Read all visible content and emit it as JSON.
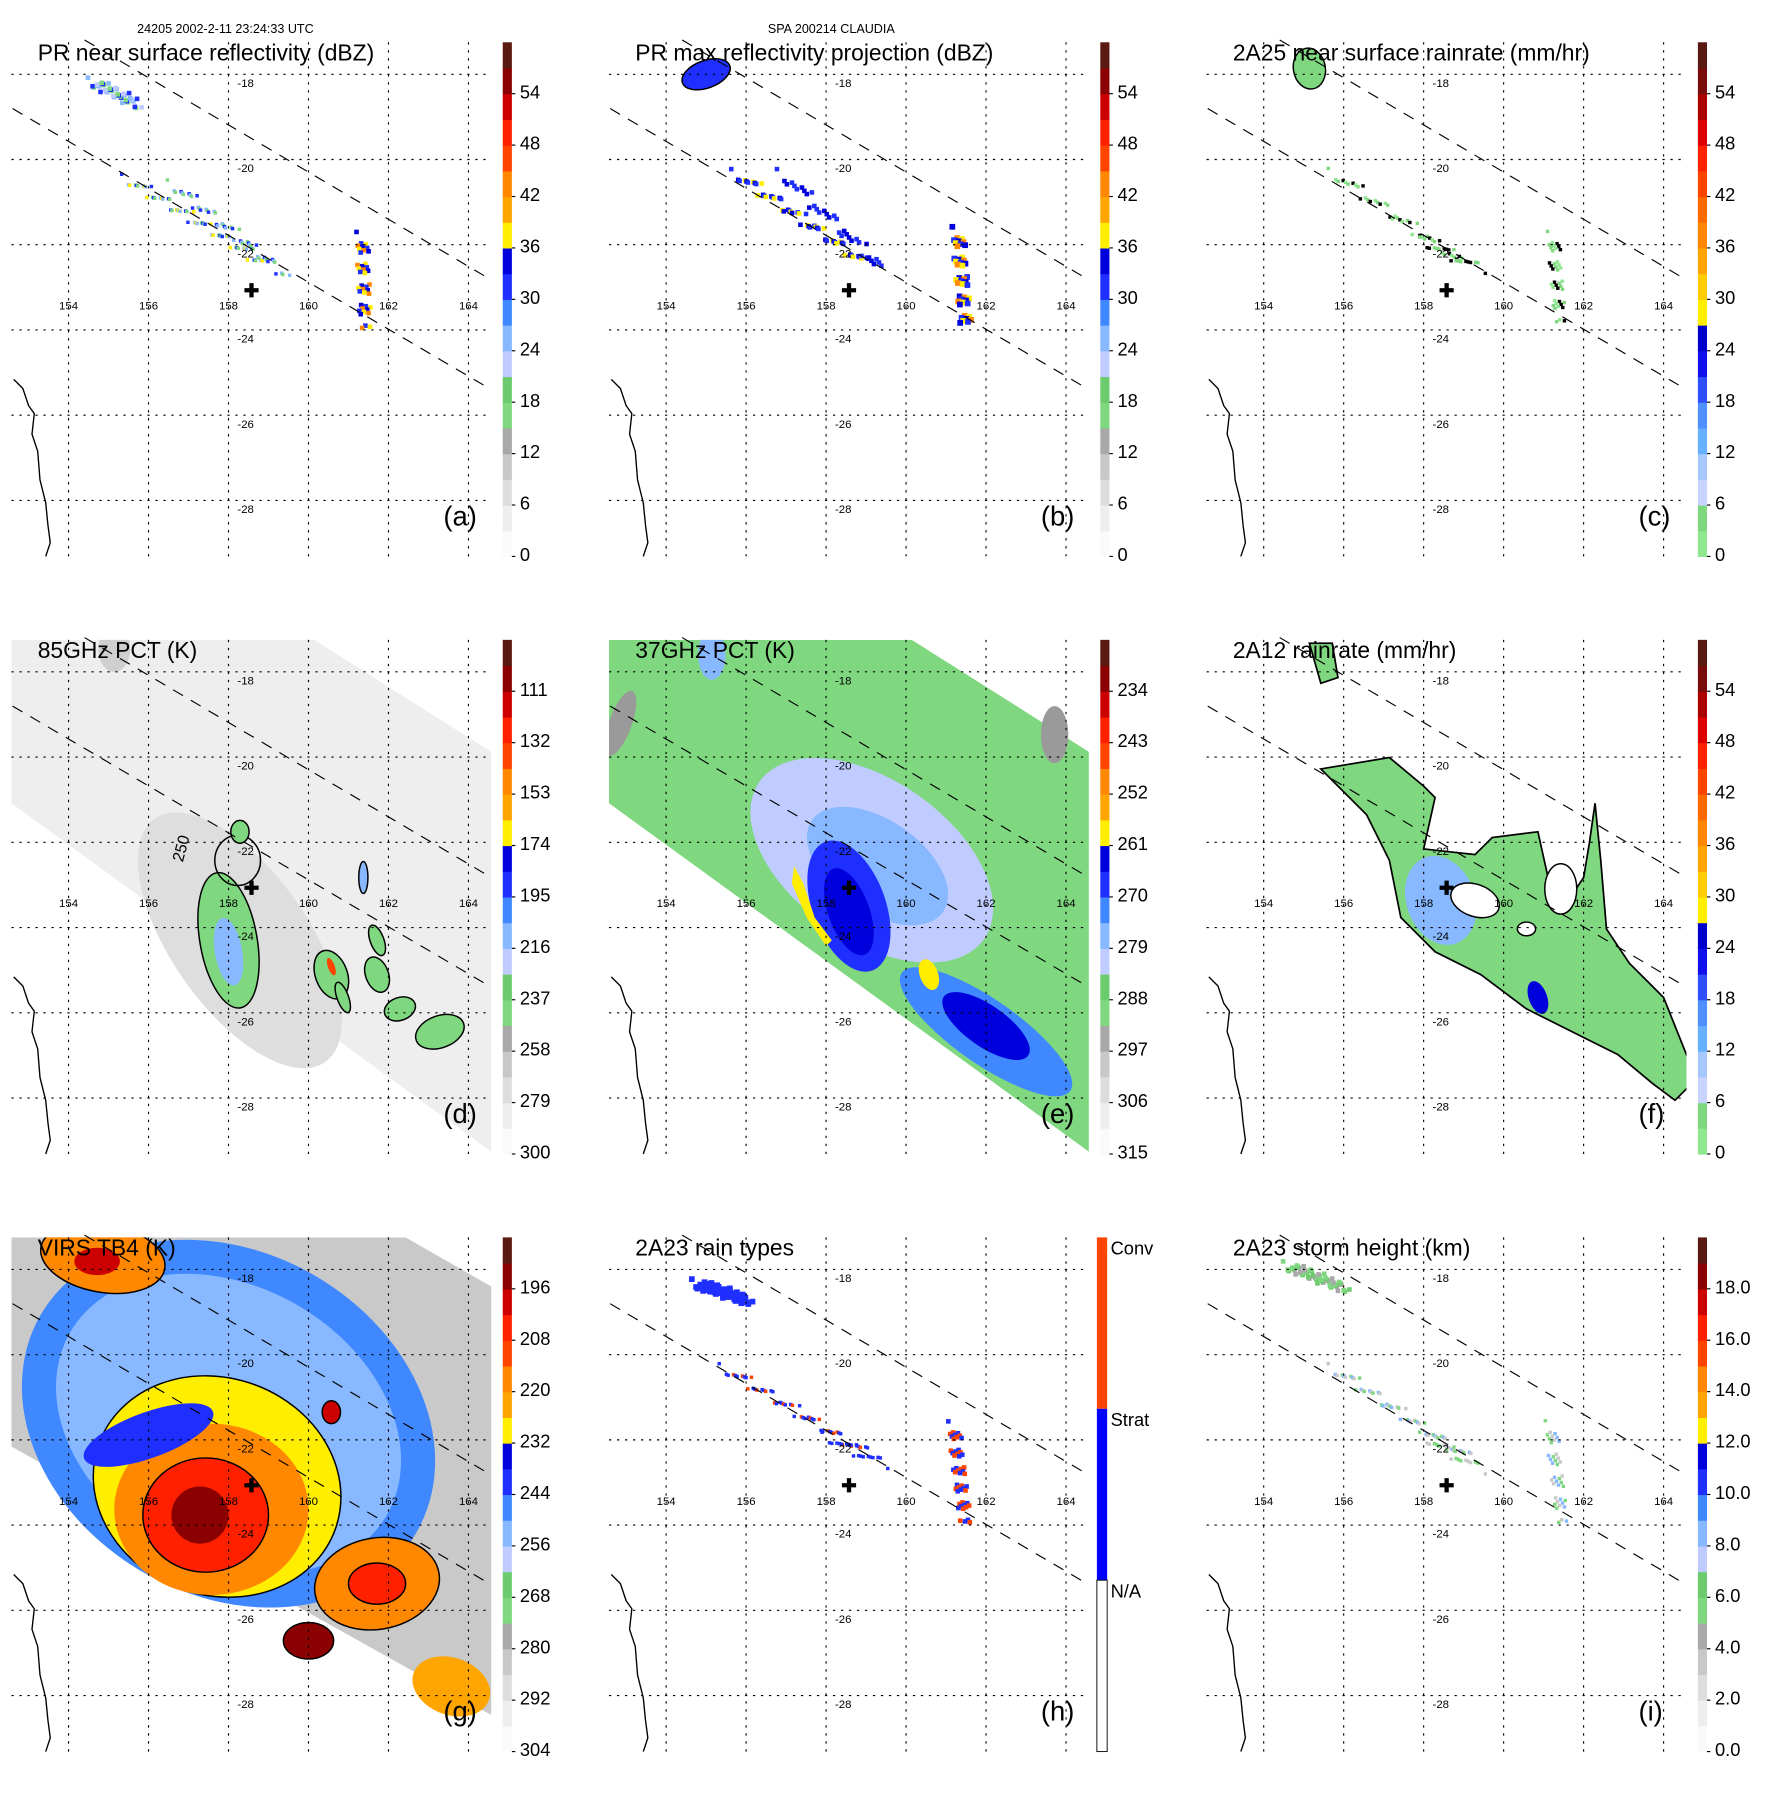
{
  "header": {
    "orbit_time": "24205 2002-2-11 23:24:33 UTC",
    "storm": "SPA 200214 CLAUDIA"
  },
  "colors": {
    "palette_standard": [
      "#fafafa",
      "#eeeeee",
      "#dddddd",
      "#c8c8c8",
      "#a8a8a8",
      "#7fd87f",
      "#6ccb6c",
      "#c0ccff",
      "#88b8ff",
      "#3f88ff",
      "#1f2fff",
      "#0000dd",
      "#ffee00",
      "#ffa500",
      "#ff8800",
      "#ff4400",
      "#ff2000",
      "#cc0000",
      "#8b0000",
      "#5a1a12"
    ],
    "palette_rain": [
      "#8fe88f",
      "#7fd87f",
      "#c8d4ff",
      "#a6c8ff",
      "#66b0ff",
      "#4f8fff",
      "#2f4fff",
      "#1010ee",
      "#0000cc",
      "#ffee00",
      "#ffcc00",
      "#ffa500",
      "#ff8800",
      "#ff6a00",
      "#ff4400",
      "#ff2200",
      "#dd0000",
      "#aa0000",
      "#7a0c0c",
      "#5a1a12"
    ],
    "palette_raintype": [
      "#ffffff",
      "#0000ff",
      "#ff4500"
    ],
    "contour": "#000000",
    "center_marker": "#000000"
  },
  "map": {
    "lon_ticks": [
      "154",
      "156",
      "158",
      "160",
      "162",
      "164"
    ],
    "lat_ticks": [
      "-18",
      "-20",
      "-22",
      "-24",
      "-26",
      "-28"
    ],
    "center_symbol": "✚"
  },
  "panels": [
    {
      "id": "a",
      "title": "PR near surface reflectivity (dBZ)",
      "letter": "(a)",
      "palette": "palette_standard",
      "ticks": [
        "0",
        "6",
        "12",
        "18",
        "24",
        "30",
        "36",
        "42",
        "48",
        "54"
      ]
    },
    {
      "id": "b",
      "title": "PR max reflectivity projection (dBZ)",
      "letter": "(b)",
      "palette": "palette_standard",
      "ticks": [
        "0",
        "6",
        "12",
        "18",
        "24",
        "30",
        "36",
        "42",
        "48",
        "54"
      ]
    },
    {
      "id": "c",
      "title": "2A25 near surface rainrate (mm/hr)",
      "letter": "(c)",
      "palette": "palette_rain",
      "ticks": [
        "0",
        "6",
        "12",
        "18",
        "24",
        "30",
        "36",
        "42",
        "48",
        "54"
      ]
    },
    {
      "id": "d",
      "title": "85GHz PCT (K)",
      "letter": "(d)",
      "palette": "palette_standard",
      "ticks": [
        "300",
        "279",
        "258",
        "237",
        "216",
        "195",
        "174",
        "153",
        "132",
        "111"
      ],
      "contour_label": "250"
    },
    {
      "id": "e",
      "title": "37GHz PCT (K)",
      "letter": "(e)",
      "palette": "palette_standard",
      "ticks": [
        "315",
        "306",
        "297",
        "288",
        "279",
        "270",
        "261",
        "252",
        "243",
        "234"
      ]
    },
    {
      "id": "f",
      "title": "2A12 rainrate (mm/hr)",
      "letter": "(f)",
      "palette": "palette_rain",
      "ticks": [
        "0",
        "6",
        "12",
        "18",
        "24",
        "30",
        "36",
        "42",
        "48",
        "54"
      ]
    },
    {
      "id": "g",
      "title": "VIRS TB4 (K)",
      "letter": "(g)",
      "palette": "palette_standard",
      "ticks": [
        "304",
        "292",
        "280",
        "268",
        "256",
        "244",
        "232",
        "220",
        "208",
        "196"
      ]
    },
    {
      "id": "h",
      "title": "2A23 rain types",
      "letter": "(h)",
      "palette": "palette_raintype",
      "ticks": [
        "N/A",
        "Strat",
        "Conv"
      ]
    },
    {
      "id": "i",
      "title": "2A23 storm height (km)",
      "letter": "(i)",
      "palette": "palette_standard",
      "ticks": [
        "0.0",
        "2.0",
        "4.0",
        "6.0",
        "8.0",
        "10.0",
        "12.0",
        "14.0",
        "16.0",
        "18.0"
      ]
    }
  ]
}
